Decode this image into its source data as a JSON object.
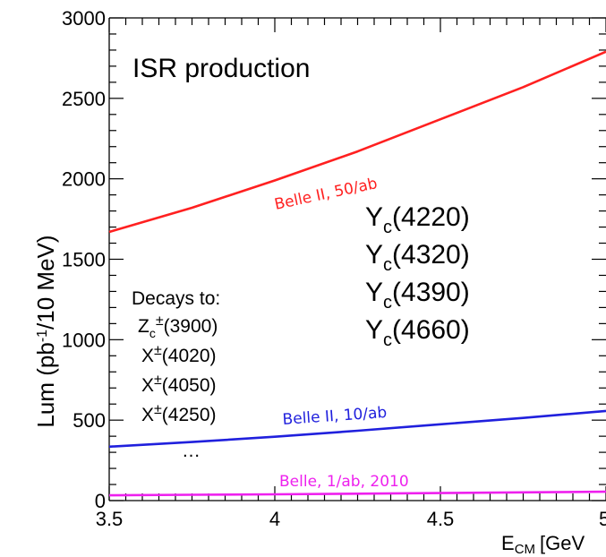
{
  "chart_data": {
    "type": "line",
    "title": "ISR production",
    "xlabel": "E",
    "xlabel_sub": "CM",
    "xlabel_unit": "[GeV",
    "ylabel_parts": {
      "main": "Lum  (pb",
      "sup": "-1",
      "tail": "/10 MeV)"
    },
    "xlim": [
      3.5,
      5.0
    ],
    "ylim": [
      0,
      3000
    ],
    "x_ticks": [
      3.5,
      4.0,
      4.5,
      5.0
    ],
    "x_tick_labels": [
      "3.5",
      "4",
      "4.5",
      "5"
    ],
    "y_ticks": [
      0,
      500,
      1000,
      1500,
      2000,
      2500,
      3000
    ],
    "y_tick_labels": [
      "0",
      "500",
      "1000",
      "1500",
      "2000",
      "2500",
      "3000"
    ],
    "series": [
      {
        "name": "Belle II, 50/ab",
        "color": "#ff2020",
        "x": [
          3.5,
          3.75,
          4.0,
          4.25,
          4.5,
          4.75,
          5.0
        ],
        "y": [
          1670,
          1820,
          1990,
          2170,
          2370,
          2570,
          2790
        ]
      },
      {
        "name": "Belle II, 10/ab",
        "color": "#2020dd",
        "x": [
          3.5,
          3.75,
          4.0,
          4.25,
          4.5,
          4.75,
          5.0
        ],
        "y": [
          335,
          364,
          397,
          434,
          474,
          514,
          557
        ]
      },
      {
        "name": "Belle, 1/ab, 2010",
        "color": "#ee20ee",
        "x": [
          3.5,
          3.75,
          4.0,
          4.25,
          4.5,
          4.75,
          5.0
        ],
        "y": [
          33,
          36,
          39,
          43,
          47,
          51,
          55
        ]
      }
    ],
    "states": [
      {
        "base": "Y",
        "sub": "c",
        "rest": "(4220)"
      },
      {
        "base": "Y",
        "sub": "c",
        "rest": "(4320)"
      },
      {
        "base": "Y",
        "sub": "c",
        "rest": "(4390)"
      },
      {
        "base": "Y",
        "sub": "c",
        "rest": "(4660)"
      }
    ],
    "decays": {
      "heading": "Decays to:",
      "items": [
        {
          "base": "Z",
          "sub": "c",
          "sup": "±",
          "rest": "(3900)"
        },
        {
          "base": "X",
          "sub": "",
          "sup": "±",
          "rest": "(4020)"
        },
        {
          "base": "X",
          "sub": "",
          "sup": "±",
          "rest": "(4050)"
        },
        {
          "base": "X",
          "sub": "",
          "sup": "±",
          "rest": "(4250)"
        }
      ],
      "ellipsis": "…"
    }
  }
}
